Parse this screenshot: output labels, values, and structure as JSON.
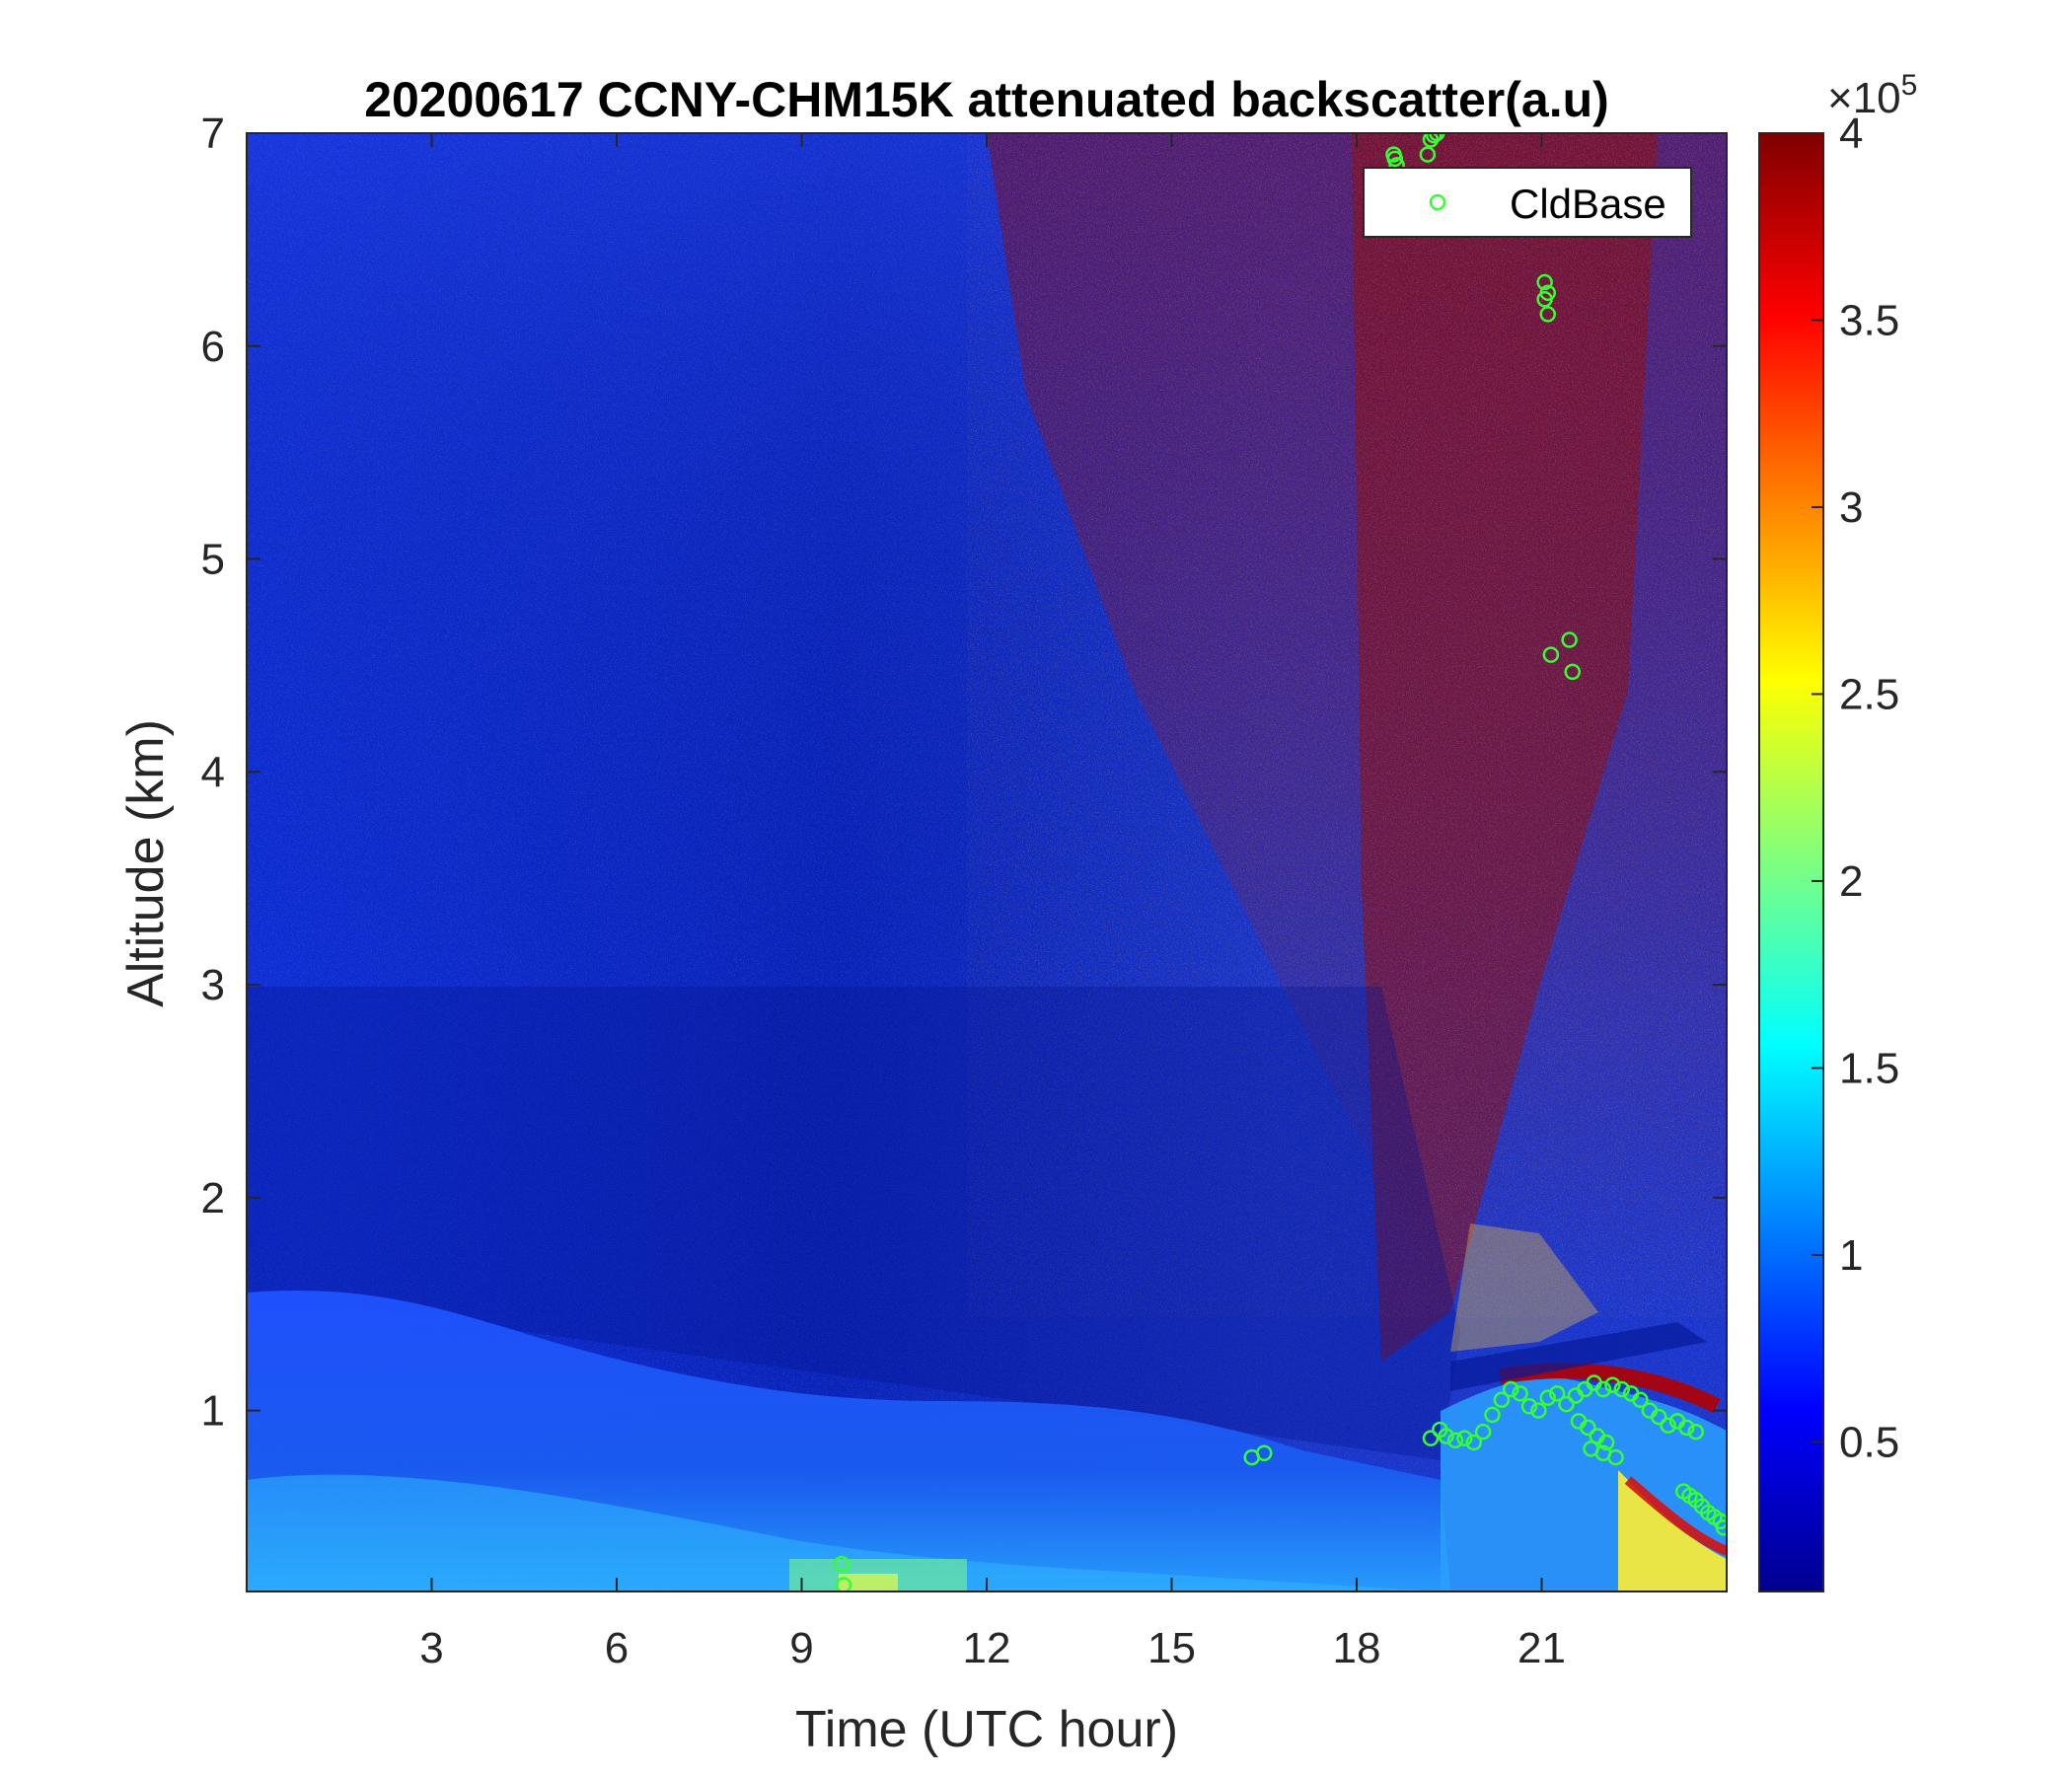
{
  "chart_data": {
    "type": "heatmap",
    "title": "20200617 CCNY-CHM15K attenuated backscatter(a.u)",
    "xlabel": "Time (UTC hour)",
    "ylabel": "Altitude (km)",
    "xlim": [
      0,
      24
    ],
    "ylim": [
      0.15,
      7
    ],
    "xticks": [
      "3",
      "6",
      "9",
      "12",
      "15",
      "18",
      "21"
    ],
    "xtick_values": [
      3,
      6,
      9,
      12,
      15,
      18,
      21
    ],
    "yticks": [
      "1",
      "2",
      "3",
      "4",
      "5",
      "6",
      "7"
    ],
    "ytick_values": [
      1,
      2,
      3,
      4,
      5,
      6,
      7
    ],
    "colorbar": {
      "colormap": "jet",
      "min": 0.1,
      "max": 4,
      "ticks": [
        "0.5",
        "1",
        "1.5",
        "2",
        "2.5",
        "3",
        "3.5",
        "4"
      ],
      "tick_values": [
        0.5,
        1,
        1.5,
        2,
        2.5,
        3,
        3.5,
        4
      ],
      "exponent_label": "×10",
      "exponent": "5"
    },
    "legend": {
      "position": "top-right",
      "entries": [
        {
          "name": "CldBase",
          "marker": "circle",
          "color": "#33ff33"
        }
      ]
    },
    "series": [
      {
        "name": "CldBase",
        "type": "scatter",
        "x": [
          18.6,
          18.62,
          18.65,
          19.15,
          19.2,
          19.25,
          19.3,
          21.05,
          21.05,
          21.1,
          21.1,
          21.15,
          21.45,
          21.5,
          9.65,
          9.68,
          16.3,
          16.5,
          19.2,
          19.35,
          19.45,
          19.6,
          19.75,
          19.9,
          20.05,
          20.2,
          20.35,
          20.5,
          20.65,
          20.8,
          20.95,
          21.1,
          21.25,
          21.4,
          21.55,
          21.7,
          21.85,
          22.0,
          22.15,
          22.3,
          22.45,
          22.6,
          22.75,
          22.9,
          23.05,
          23.2,
          23.35,
          23.5,
          21.6,
          21.75,
          21.9,
          22.05,
          22.2,
          21.8,
          22.0,
          23.3,
          23.4,
          23.5,
          23.6,
          23.7,
          23.8,
          23.9,
          23.95
        ],
        "y": [
          6.9,
          6.88,
          6.85,
          6.9,
          6.97,
          6.99,
          7.0,
          6.3,
          6.22,
          6.25,
          6.15,
          4.55,
          4.62,
          4.47,
          0.28,
          0.18,
          0.78,
          0.8,
          0.87,
          0.91,
          0.88,
          0.86,
          0.87,
          0.85,
          0.9,
          0.98,
          1.05,
          1.1,
          1.08,
          1.02,
          1.0,
          1.06,
          1.08,
          1.03,
          1.07,
          1.1,
          1.13,
          1.1,
          1.12,
          1.1,
          1.08,
          1.05,
          1.0,
          0.97,
          0.93,
          0.95,
          0.92,
          0.9,
          0.95,
          0.92,
          0.88,
          0.85,
          0.78,
          0.82,
          0.8,
          0.62,
          0.6,
          0.58,
          0.55,
          0.52,
          0.5,
          0.48,
          0.45
        ]
      }
    ]
  }
}
